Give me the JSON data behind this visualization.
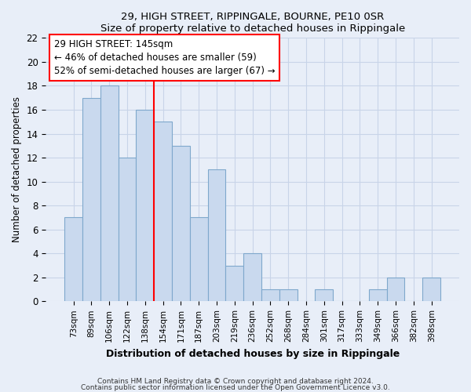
{
  "title": "29, HIGH STREET, RIPPINGALE, BOURNE, PE10 0SR",
  "subtitle": "Size of property relative to detached houses in Rippingale",
  "xlabel": "Distribution of detached houses by size in Rippingale",
  "ylabel": "Number of detached properties",
  "footnote1": "Contains HM Land Registry data © Crown copyright and database right 2024.",
  "footnote2": "Contains public sector information licensed under the Open Government Licence v3.0.",
  "bar_labels": [
    "73sqm",
    "89sqm",
    "106sqm",
    "122sqm",
    "138sqm",
    "154sqm",
    "171sqm",
    "187sqm",
    "203sqm",
    "219sqm",
    "236sqm",
    "252sqm",
    "268sqm",
    "284sqm",
    "301sqm",
    "317sqm",
    "333sqm",
    "349sqm",
    "366sqm",
    "382sqm",
    "398sqm"
  ],
  "bar_values": [
    7,
    17,
    18,
    12,
    16,
    15,
    13,
    7,
    11,
    3,
    4,
    1,
    1,
    0,
    1,
    0,
    0,
    1,
    2,
    0,
    2
  ],
  "bar_color": "#c9d9ee",
  "bar_edge_color": "#7fa8cc",
  "ylim": [
    0,
    22
  ],
  "yticks": [
    0,
    2,
    4,
    6,
    8,
    10,
    12,
    14,
    16,
    18,
    20,
    22
  ],
  "property_line_x": 4.5,
  "property_line_label": "29 HIGH STREET: 145sqm",
  "annotation_line1": "← 46% of detached houses are smaller (59)",
  "annotation_line2": "52% of semi-detached houses are larger (67) →",
  "grid_color": "#c8d4e8",
  "background_color": "#e8eef8"
}
